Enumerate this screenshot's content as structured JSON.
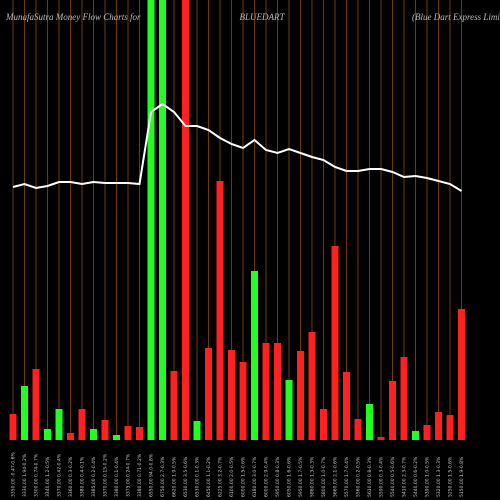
{
  "chart_data": {
    "type": "bar",
    "title": "MunafaSutra  Money Flow  Charts for",
    "ticker": "BLUEDART",
    "company": "(Blue   Dart Express Limi",
    "categories": [
      "3350.00 -0.47-0.6%",
      "3330.00 1.94-0.2%",
      "3300.00 0.74-0.7%",
      "3340.00 1.2-0.5%",
      "3370.00 0.42-0.4%",
      "3360.00 0.3-0.2%",
      "3380.00 0.4-0.1%",
      "3385.00 0.2-0.4%",
      "3370.00 0.15-0.2%",
      "3380.00 0.1-0.4%",
      "3375.00 0.24-0.7%",
      "3380.00 0.71-0.2%",
      "6550.00 94.0-0.8%",
      "6750.00 2.7-0.3%",
      "6620.00 1.9-0.5%",
      "6530.00 3.5-0.6%",
      "6530.00 0.1-0.3%",
      "6450.00 1.1-0.2%",
      "6225.00 3.2-0.7%",
      "6100.00 2.0-0.5%",
      "6000.00 1.5-0.6%",
      "6180.00 3.0-0.7%",
      "6000.00 2.9-0.4%",
      "5950.00 0.8-0.3%",
      "6050.00 1.6-0.6%",
      "5950.00 1.7-0.5%",
      "5860.00 1.3-0.3%",
      "5800.00 1.0-0.7%",
      "5660.00 2.1-0.6%",
      "5570.00 1.7-0.4%",
      "5560.00 0.2-0.5%",
      "5610.00 0.8-0.3%",
      "5590.00 0.3-0.4%",
      "5540.00 0.5-0.6%",
      "5410.00 2.3-0.7%",
      "5440.00 0.6-0.2%",
      "5390.00 1.0-0.5%",
      "5320.00 1.3-0.3%",
      "5250.00 1.5-0.6%",
      "5150.00 1.9-0.8%"
    ],
    "values": [
      26,
      54,
      71,
      11,
      31,
      7,
      31,
      11,
      20,
      5,
      14,
      13,
      500,
      500,
      69,
      500,
      19,
      92,
      259,
      90,
      78,
      169,
      97,
      97,
      60,
      89,
      108,
      31,
      194,
      68,
      21,
      36,
      3,
      59,
      83,
      9,
      15,
      28,
      25,
      131
    ],
    "bar_colors": [
      "#ff2020",
      "#20ff20",
      "#ff2020",
      "#20ff20",
      "#20ff20",
      "#ff2020",
      "#ff2020",
      "#20ff20",
      "#ff2020",
      "#20ff20",
      "#ff2020",
      "#ff2020",
      "#20ff20",
      "#20ff20",
      "#ff2020",
      "#ff2020",
      "#20ff20",
      "#ff2020",
      "#ff2020",
      "#ff2020",
      "#ff2020",
      "#20ff20",
      "#ff2020",
      "#ff2020",
      "#20ff20",
      "#ff2020",
      "#ff2020",
      "#ff2020",
      "#ff2020",
      "#ff2020",
      "#ff2020",
      "#20ff20",
      "#ff2020",
      "#ff2020",
      "#ff2020",
      "#20ff20",
      "#ff2020",
      "#ff2020",
      "#ff2020",
      "#ff2020"
    ],
    "line_values": [
      253,
      256,
      252,
      254,
      258,
      258,
      256,
      258,
      257,
      257,
      257,
      256,
      328,
      336,
      328,
      314,
      314,
      310,
      302,
      296,
      292,
      300,
      290,
      287,
      291,
      287,
      283,
      280,
      273,
      269,
      269,
      271,
      271,
      268,
      263,
      264,
      262,
      259,
      256,
      249
    ],
    "line_color": "#ffffff",
    "grid": true,
    "grid_color": "#8b4a10"
  }
}
